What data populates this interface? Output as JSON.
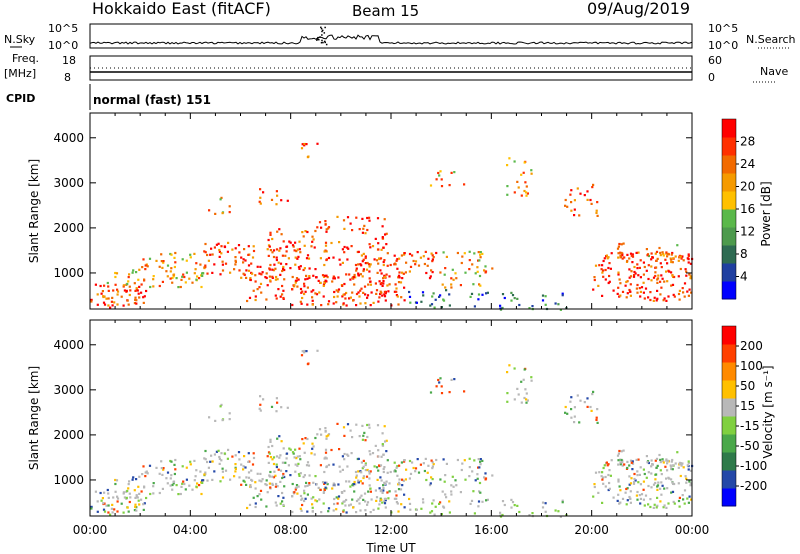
{
  "header": {
    "site": "Hokkaido East (fitACF)",
    "beam": "Beam 15",
    "date": "09/Aug/2019"
  },
  "summary": {
    "nsky_label": "N.Sky",
    "nsearch_label": "N.Search",
    "freq_label": "Freq.",
    "freq_unit": "[MHz]",
    "nave_label": "Nave",
    "cpid_label": "CPID",
    "cpid_text": "normal (fast) 151",
    "nsky_ticks": [
      "10^5",
      "10^0"
    ],
    "nsearch_ticks": [
      "10^5",
      "10^0"
    ],
    "freq_ticks": [
      "18",
      "8"
    ],
    "nave_ticks": [
      "60",
      "0"
    ]
  },
  "chart_data": [
    {
      "type": "heatmap",
      "title": "",
      "ylabel": "Slant Range [km]",
      "xlabel": "",
      "y_ticks": [
        "1000",
        "2000",
        "3000",
        "4000"
      ],
      "ylim": [
        200,
        4550
      ],
      "xlim": [
        0,
        24
      ],
      "colorbar_label": "Power [dB]",
      "colorbar_ticks": [
        "4",
        "8",
        "12",
        "16",
        "20",
        "24",
        "28"
      ],
      "colors": [
        "#0000ff",
        "#1f3fa0",
        "#2e6b52",
        "#4d9a4d",
        "#5ab84a",
        "#ffc000",
        "#f59a00",
        "#f26a00",
        "#ff3000",
        "#ff0000"
      ]
    },
    {
      "type": "heatmap",
      "title": "",
      "ylabel": "Slant Range [km]",
      "xlabel": "Time UT",
      "y_ticks": [
        "1000",
        "2000",
        "3000",
        "4000"
      ],
      "x_ticks": [
        "00:00",
        "04:00",
        "08:00",
        "12:00",
        "16:00",
        "20:00",
        "00:00"
      ],
      "ylim": [
        200,
        4550
      ],
      "xlim": [
        0,
        24
      ],
      "colorbar_label": "Velocity [m s⁻¹]",
      "colorbar_ticks": [
        "200",
        "100",
        "50",
        "15",
        "-15",
        "-50",
        "-100",
        "-200"
      ],
      "colors": [
        "#0000ff",
        "#2448a8",
        "#2e7a4a",
        "#4aa84a",
        "#80d040",
        "#b8b8b8",
        "#ffc000",
        "#ff8a00",
        "#ff4000",
        "#ff0000"
      ]
    }
  ]
}
